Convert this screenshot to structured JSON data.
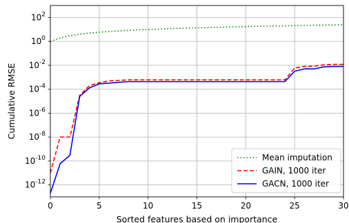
{
  "chart_data": {
    "type": "line",
    "title": "",
    "xlabel": "Sorted features based on importance",
    "ylabel": "Cumulative RMSE",
    "xlim": [
      0,
      30
    ],
    "ylog": true,
    "ylim_exp": [
      -13,
      3
    ],
    "grid": true,
    "legend_position": "bottom-right",
    "x_ticks": [
      0,
      5,
      10,
      15,
      20,
      25,
      30
    ],
    "y_ticks": [
      {
        "base": "10",
        "exp": "2"
      },
      {
        "base": "10",
        "exp": "0"
      },
      {
        "base": "10",
        "exp": "-2"
      },
      {
        "base": "10",
        "exp": "-4"
      },
      {
        "base": "10",
        "exp": "-6"
      },
      {
        "base": "10",
        "exp": "-8"
      },
      {
        "base": "10",
        "exp": "-10"
      },
      {
        "base": "10",
        "exp": "-12"
      }
    ],
    "x": [
      0,
      1,
      2,
      3,
      4,
      5,
      6,
      7,
      8,
      9,
      10,
      11,
      12,
      13,
      14,
      15,
      16,
      17,
      18,
      19,
      20,
      21,
      22,
      23,
      24,
      25,
      26,
      27,
      28,
      29,
      30
    ],
    "series": [
      {
        "name": "Mean imputation",
        "color": "#008000",
        "dash": "dotted",
        "y": [
          1.0,
          1.9,
          3.0,
          4.0,
          4.9,
          5.8,
          6.7,
          7.5,
          8.3,
          9.1,
          9.8,
          10.6,
          11.4,
          12.1,
          12.9,
          13.6,
          14.3,
          15.0,
          15.8,
          16.5,
          17.2,
          18.0,
          18.7,
          19.4,
          20.1,
          20.9,
          21.6,
          22.3,
          23.0,
          23.7,
          24.5
        ]
      },
      {
        "name": "GAIN, 1000 iter",
        "color": "#ff0000",
        "dash": "dashed",
        "y": [
          1e-11,
          1e-08,
          1e-08,
          3e-05,
          0.0002,
          0.00035,
          0.0005,
          0.00055,
          0.0006,
          0.0006,
          0.0006,
          0.0006,
          0.0006,
          0.0006,
          0.0006,
          0.0006,
          0.0006,
          0.0006,
          0.0006,
          0.0006,
          0.0006,
          0.0006,
          0.0006,
          0.0006,
          0.0006,
          0.006,
          0.008,
          0.0085,
          0.011,
          0.012,
          0.012
        ]
      },
      {
        "name": "GACN, 1000 iter",
        "color": "#0000ff",
        "dash": "solid",
        "y": [
          2e-13,
          6e-11,
          3e-10,
          2.5e-05,
          0.00013,
          0.00028,
          0.00032,
          0.00038,
          0.00043,
          0.00043,
          0.00043,
          0.00043,
          0.00043,
          0.00043,
          0.00043,
          0.00043,
          0.00043,
          0.00043,
          0.00043,
          0.00043,
          0.00043,
          0.00043,
          0.00043,
          0.00043,
          0.00043,
          0.0032,
          0.005,
          0.005,
          0.0075,
          0.008,
          0.008
        ]
      }
    ]
  }
}
